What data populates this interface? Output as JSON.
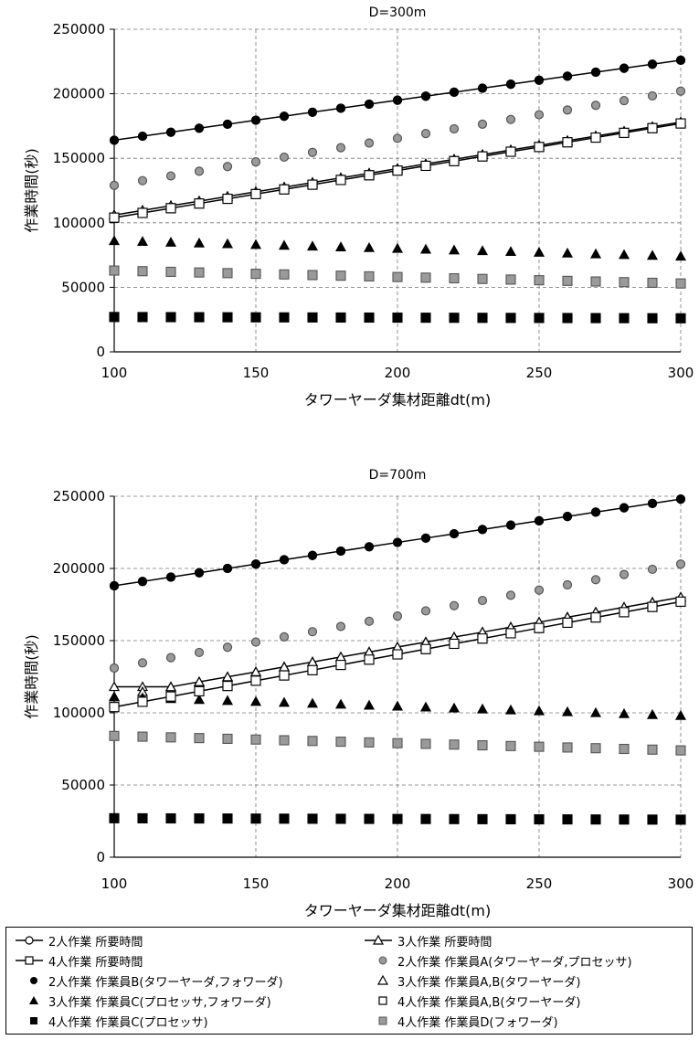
{
  "chart_data": [
    {
      "type": "scatter",
      "title": "D=300m",
      "xlabel": "タワーヤーダ集材距離dt(m)",
      "ylabel": "作業時間(秒)",
      "xlim": [
        100,
        300
      ],
      "ylim": [
        0,
        250000
      ],
      "xticks": [
        100,
        150,
        200,
        250,
        300
      ],
      "yticks": [
        0,
        50000,
        100000,
        150000,
        200000,
        250000
      ],
      "grid": "dashed",
      "x": [
        100,
        110,
        120,
        130,
        140,
        150,
        160,
        170,
        180,
        190,
        200,
        210,
        220,
        230,
        240,
        250,
        260,
        270,
        280,
        290,
        300
      ],
      "series": [
        {
          "name": "2人作業 所要時間",
          "y_start": 164000,
          "y_end": 226000
        },
        {
          "name": "3人作業 所要時間",
          "y_start": 106000,
          "y_end": 178000
        },
        {
          "name": "4人作業 所要時間",
          "y_start": 104000,
          "y_end": 177000
        },
        {
          "name": "2人作業 作業員A(タワーヤーダ,プロセッサ)",
          "y_start": 129000,
          "y_end": 202000
        },
        {
          "name": "2人作業 作業員B(タワーヤーダ,フォワーダ)",
          "y_start": 164000,
          "y_end": 226000
        },
        {
          "name": "3人作業 作業員A,B(タワーヤーダ)",
          "y_start": 106000,
          "y_end": 178000
        },
        {
          "name": "3人作業 作業員C(プロセッサ,フォワーダ)",
          "y_start": 86000,
          "y_end": 74000
        },
        {
          "name": "4人作業 作業員A,B(タワーヤーダ)",
          "y_start": 104000,
          "y_end": 177000
        },
        {
          "name": "4人作業 作業員C(プロセッサ)",
          "y_start": 27000,
          "y_end": 26000
        },
        {
          "name": "4人作業 作業員D(フォワーダ)",
          "y_start": 63000,
          "y_end": 53000
        }
      ]
    },
    {
      "type": "scatter",
      "title": "D=700m",
      "xlabel": "タワーヤーダ集材距離dt(m)",
      "ylabel": "作業時間(秒)",
      "xlim": [
        100,
        300
      ],
      "ylim": [
        0,
        250000
      ],
      "xticks": [
        100,
        150,
        200,
        250,
        300
      ],
      "yticks": [
        0,
        50000,
        100000,
        150000,
        200000,
        250000
      ],
      "grid": "dashed",
      "x": [
        100,
        110,
        120,
        130,
        140,
        150,
        160,
        170,
        180,
        190,
        200,
        210,
        220,
        230,
        240,
        250,
        260,
        270,
        280,
        290,
        300
      ],
      "series": [
        {
          "name": "2人作業 所要時間",
          "y_start": 188000,
          "y_end": 248000
        },
        {
          "name": "3人作業 所要時間",
          "y_start": 118000,
          "y_end": 180000,
          "y_third": 118000
        },
        {
          "name": "4人作業 所要時間",
          "y_start": 104000,
          "y_end": 177000
        },
        {
          "name": "2人作業 作業員A(タワーヤーダ,プロセッサ)",
          "y_start": 131000,
          "y_end": 203000
        },
        {
          "name": "2人作業 作業員B(タワーヤーダ,フォワーダ)",
          "y_start": 188000,
          "y_end": 248000
        },
        {
          "name": "3人作業 作業員A,B(タワーヤーダ)",
          "y_start": 111000,
          "y_end": 180000
        },
        {
          "name": "3人作業 作業員C(プロセッサ,フォワーダ)",
          "y_start": 111000,
          "y_end": 98000
        },
        {
          "name": "4人作業 作業員A,B(タワーヤーダ)",
          "y_start": 104000,
          "y_end": 177000
        },
        {
          "name": "4人作業 作業員C(プロセッサ)",
          "y_start": 27000,
          "y_end": 26000
        },
        {
          "name": "4人作業 作業員D(フォワーダ)",
          "y_start": 84000,
          "y_end": 74000
        }
      ]
    }
  ],
  "legend": [
    {
      "label": "2人作業 所要時間",
      "symbol": "line-open-circle"
    },
    {
      "label": "3人作業 所要時間",
      "symbol": "line-open-triangle"
    },
    {
      "label": "4人作業 所要時間",
      "symbol": "line-open-square"
    },
    {
      "label": "2人作業 作業員A(タワーヤーダ,プロセッサ)",
      "symbol": "gray-circle"
    },
    {
      "label": "2人作業 作業員B(タワーヤーダ,フォワーダ)",
      "symbol": "black-circle"
    },
    {
      "label": "3人作業 作業員A,B(タワーヤーダ)",
      "symbol": "open-triangle"
    },
    {
      "label": "3人作業 作業員C(プロセッサ,フォワーダ)",
      "symbol": "black-triangle"
    },
    {
      "label": "4人作業 作業員A,B(タワーヤーダ)",
      "symbol": "open-square"
    },
    {
      "label": "4人作業 作業員C(プロセッサ)",
      "symbol": "black-square"
    },
    {
      "label": "4人作業 作業員D(フォワーダ)",
      "symbol": "gray-square"
    }
  ],
  "colors": {
    "black": "#000000",
    "gray": "#9a9a9a",
    "grid": "#777777"
  }
}
